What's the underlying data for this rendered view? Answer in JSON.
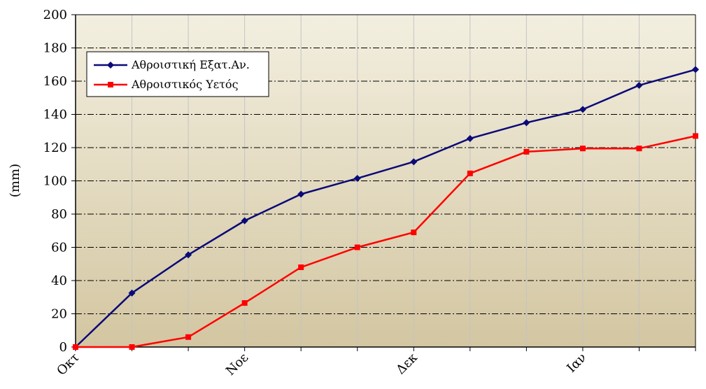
{
  "chart_data": {
    "type": "line",
    "ylabel": "(mm)",
    "xlabel": "",
    "ylim": [
      0,
      200
    ],
    "y_ticks": [
      0,
      20,
      40,
      60,
      80,
      100,
      120,
      140,
      160,
      180,
      200
    ],
    "x_tick_labels": [
      {
        "index": 0,
        "label": "Οκτ"
      },
      {
        "index": 3,
        "label": "Νοε"
      },
      {
        "index": 6,
        "label": "Δεκ"
      },
      {
        "index": 9,
        "label": "Ιαν"
      }
    ],
    "point_count": 12,
    "grid": {
      "horizontal": "dash-dot",
      "vertical": "solid-light"
    },
    "legend_position": "top-left",
    "plot_background": [
      "#f3efe0",
      "#d3c6a1"
    ],
    "series": [
      {
        "name": "Αθροιστική Εξατ.Αν.",
        "color": "#0a0a78",
        "marker": "diamond",
        "values": [
          0,
          32.5,
          55.5,
          76,
          92,
          101.5,
          111.5,
          125.5,
          135,
          143,
          157.5,
          167
        ]
      },
      {
        "name": "Αθροιστικός Υετός",
        "color": "#ff0000",
        "marker": "square",
        "values": [
          0,
          0,
          6,
          26.5,
          48,
          60,
          69,
          104.5,
          117.5,
          119.5,
          119.5,
          127
        ]
      }
    ]
  }
}
